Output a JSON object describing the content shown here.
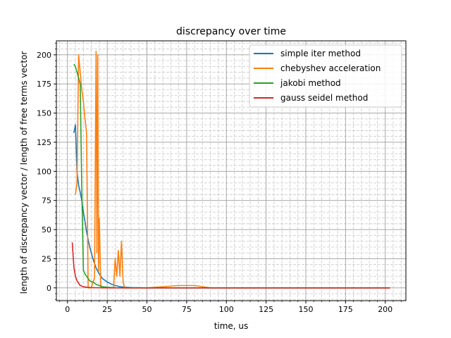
{
  "chart_data": {
    "type": "line",
    "title": "discrepancy over time",
    "xlabel": "time, us",
    "ylabel": "length of discrepancy vector / length of free terms vector",
    "xlim": [
      -7,
      213
    ],
    "ylim": [
      -11,
      212
    ],
    "xticks": [
      0,
      25,
      50,
      75,
      100,
      125,
      150,
      175,
      200
    ],
    "yticks": [
      0,
      25,
      50,
      75,
      100,
      125,
      150,
      175,
      200
    ],
    "grid": true,
    "minor_grid": true,
    "legend_position": "top-right",
    "series": [
      {
        "name": "simple iter method",
        "color": "#1f77b4",
        "x": [
          4,
          5,
          6,
          7,
          8,
          9,
          10,
          11,
          12,
          14,
          16,
          18,
          20,
          22,
          25,
          28,
          30,
          33,
          36,
          40,
          50,
          70,
          100,
          150,
          203
        ],
        "y": [
          133,
          140,
          100,
          88,
          82,
          75,
          65,
          57,
          48,
          35,
          25,
          17,
          12,
          8,
          5,
          3,
          2,
          1,
          0.5,
          0.2,
          0,
          0,
          0,
          0,
          0
        ]
      },
      {
        "name": "chebyshev acceleration",
        "color": "#ff7f0e",
        "x": [
          5,
          6,
          7,
          8,
          9,
          10,
          11,
          12,
          13,
          14,
          15,
          16,
          17,
          18,
          18.5,
          19,
          19.5,
          20,
          21,
          23,
          25,
          27,
          29,
          30,
          31,
          32,
          33,
          34,
          35,
          36,
          40,
          50,
          60,
          70,
          80,
          90,
          100,
          150,
          203
        ],
        "y": [
          80,
          90,
          200,
          185,
          170,
          160,
          145,
          133,
          0,
          0,
          0,
          5,
          8,
          203,
          30,
          200,
          15,
          60,
          0,
          0,
          0,
          0,
          0,
          25,
          10,
          32,
          10,
          40,
          5,
          0,
          0,
          0,
          1,
          2,
          2,
          0,
          0,
          0,
          0
        ]
      },
      {
        "name": "jakobi method",
        "color": "#2ca02c",
        "x": [
          4,
          5,
          6,
          7,
          8,
          9,
          10,
          11,
          12,
          13,
          14,
          16,
          18,
          20,
          22,
          25,
          28,
          30,
          35,
          40,
          60,
          100,
          150,
          203
        ],
        "y": [
          192,
          190,
          185,
          180,
          175,
          85,
          15,
          12,
          10,
          8,
          6,
          5,
          3,
          2,
          1,
          0.5,
          0.3,
          0.1,
          0,
          0,
          0,
          0,
          0,
          0
        ]
      },
      {
        "name": "gauss seidel method",
        "color": "#d62728",
        "x": [
          3,
          4,
          5,
          6,
          8,
          10,
          12,
          15,
          20,
          30,
          50,
          100,
          150,
          203
        ],
        "y": [
          39,
          18,
          10,
          6,
          2,
          1,
          0.5,
          0.2,
          0.1,
          0,
          0,
          0,
          0,
          0
        ]
      }
    ]
  }
}
